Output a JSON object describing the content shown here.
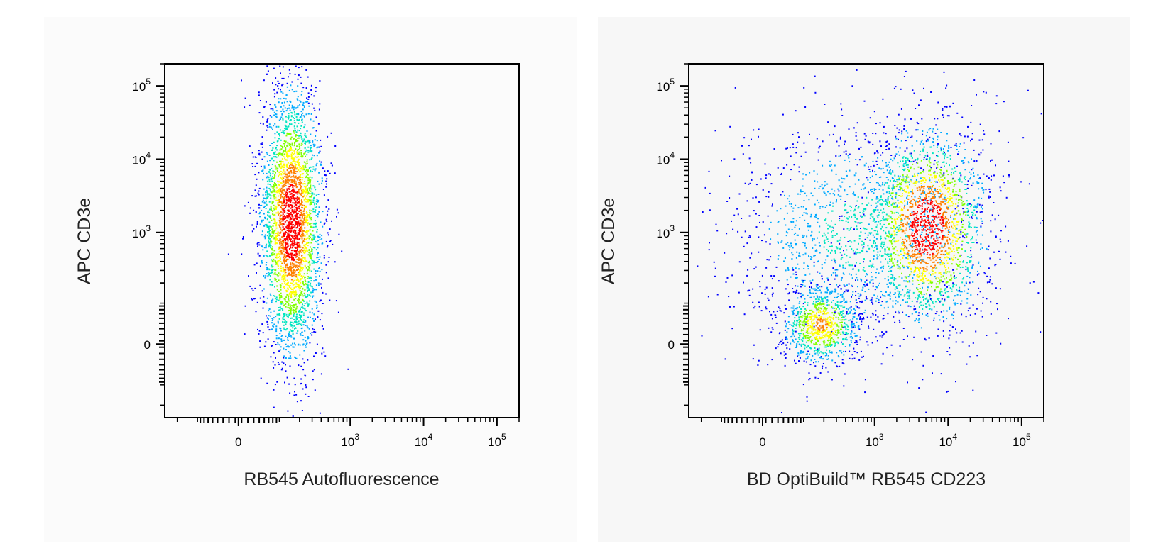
{
  "chart_data": [
    {
      "type": "scatter",
      "subtype": "flow-cytometry-density-dot-plot",
      "xlabel": "RB545 Autofluorescence",
      "ylabel": "APC CD3e",
      "x_scale": "biexponential",
      "y_scale": "biexponential",
      "xlim": [
        -300,
        200000
      ],
      "ylim": [
        -300,
        250000
      ],
      "x_tick_labels": [
        "0",
        "10^3",
        "10^4",
        "10^5"
      ],
      "y_tick_labels": [
        "0",
        "10^3",
        "10^4",
        "10^5"
      ],
      "x_ticks": [
        0,
        1000,
        10000,
        100000
      ],
      "y_ticks": [
        0,
        1000,
        10000,
        100000
      ],
      "populations": [
        {
          "center_x": 150,
          "center_y": 1400,
          "description": "single population, high density core"
        }
      ],
      "colormap": [
        "#0000ff",
        "#00aaff",
        "#00e5c0",
        "#80ff00",
        "#ffff00",
        "#ff8000",
        "#ff0000"
      ],
      "grid": false
    },
    {
      "type": "scatter",
      "subtype": "flow-cytometry-density-dot-plot",
      "xlabel": "BD OptiBuild™ RB545 CD223",
      "ylabel": "APC CD3e",
      "x_scale": "biexponential",
      "y_scale": "biexponential",
      "xlim": [
        -300,
        200000
      ],
      "ylim": [
        -300,
        250000
      ],
      "x_tick_labels": [
        "0",
        "10^3",
        "10^4",
        "10^5"
      ],
      "y_tick_labels": [
        "0",
        "10^3",
        "10^4",
        "10^5"
      ],
      "x_ticks": [
        0,
        1000,
        10000,
        100000
      ],
      "y_ticks": [
        0,
        1000,
        10000,
        100000
      ],
      "populations": [
        {
          "center_x": 180,
          "center_y": 40,
          "description": "CD223-negative, CD3e-low population"
        },
        {
          "center_x": 5000,
          "center_y": 1200,
          "description": "CD223-positive, CD3e-positive population (dense core)"
        },
        {
          "center_x": 700,
          "center_y": 1000,
          "description": "diffuse scatter between populations"
        }
      ],
      "colormap": [
        "#0000ff",
        "#00aaff",
        "#00e5c0",
        "#80ff00",
        "#ffff00",
        "#ff8000",
        "#ff0000"
      ],
      "grid": false
    }
  ]
}
